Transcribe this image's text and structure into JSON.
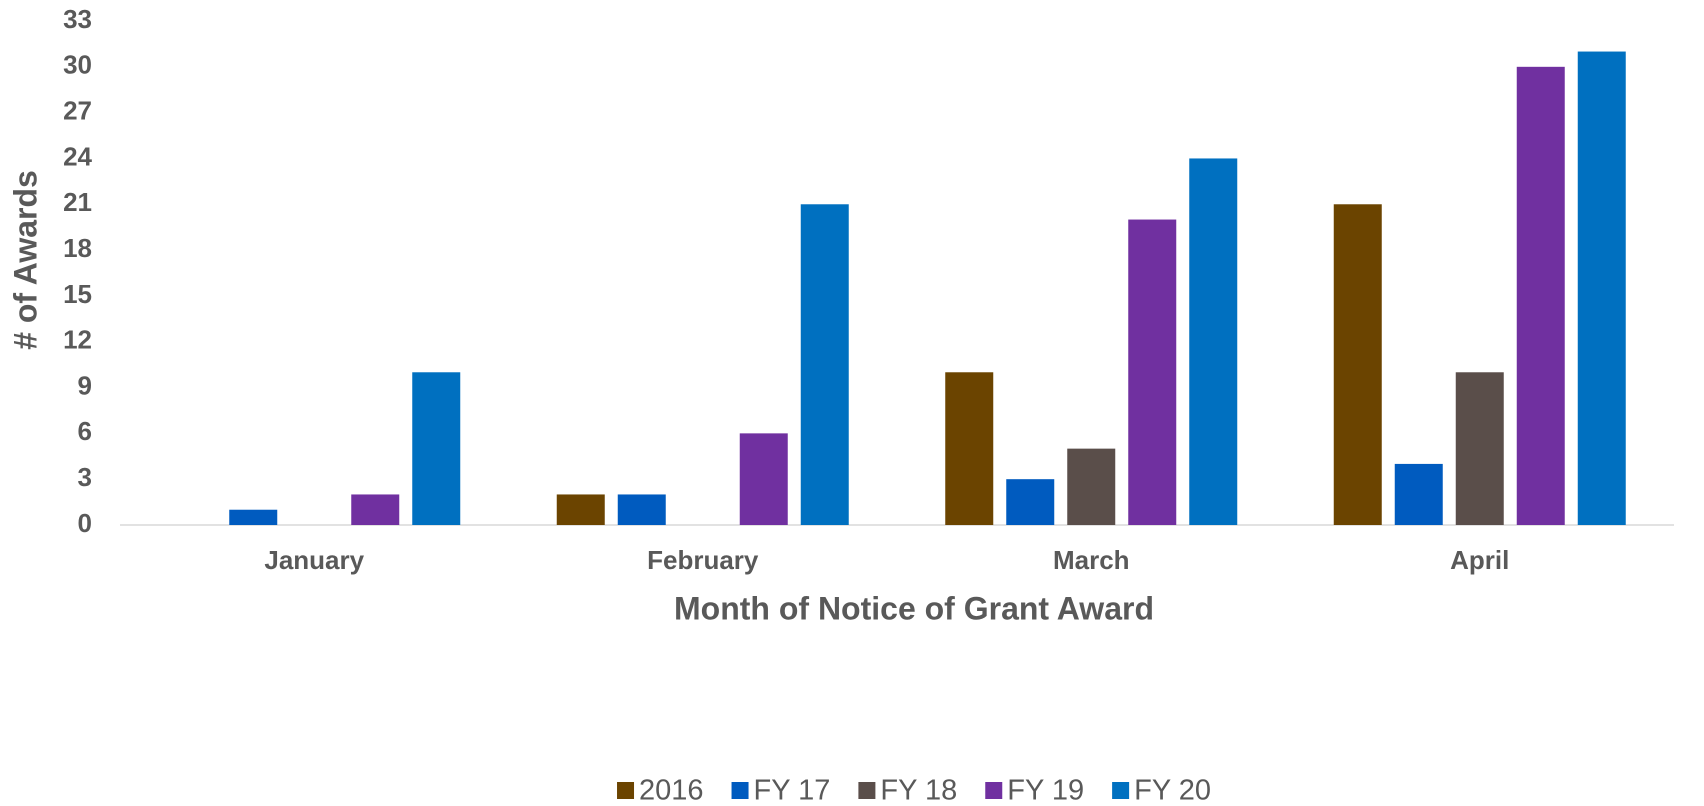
{
  "chart_data": {
    "type": "bar",
    "x_label": "Month of Notice of Grant Award",
    "y_label": "# of Awards",
    "categories": [
      "January",
      "February",
      "March",
      "April"
    ],
    "series": [
      {
        "name": "2016",
        "color": "#6b4400",
        "values": [
          0,
          2,
          10,
          21
        ]
      },
      {
        "name": "FY 17",
        "color": "#005bbf",
        "values": [
          1,
          2,
          3,
          4
        ]
      },
      {
        "name": "FY 18",
        "color": "#5a4e4a",
        "values": [
          0,
          0,
          5,
          10
        ]
      },
      {
        "name": "FY 19",
        "color": "#7030a0",
        "values": [
          2,
          6,
          20,
          30
        ]
      },
      {
        "name": "FY 20",
        "color": "#0070c0",
        "values": [
          10,
          21,
          24,
          31
        ]
      }
    ],
    "ylim": [
      0,
      33
    ],
    "yticks": [
      0,
      3,
      6,
      9,
      12,
      15,
      18,
      21,
      24,
      27,
      30,
      33
    ],
    "grid": false,
    "legend": "bottom"
  }
}
